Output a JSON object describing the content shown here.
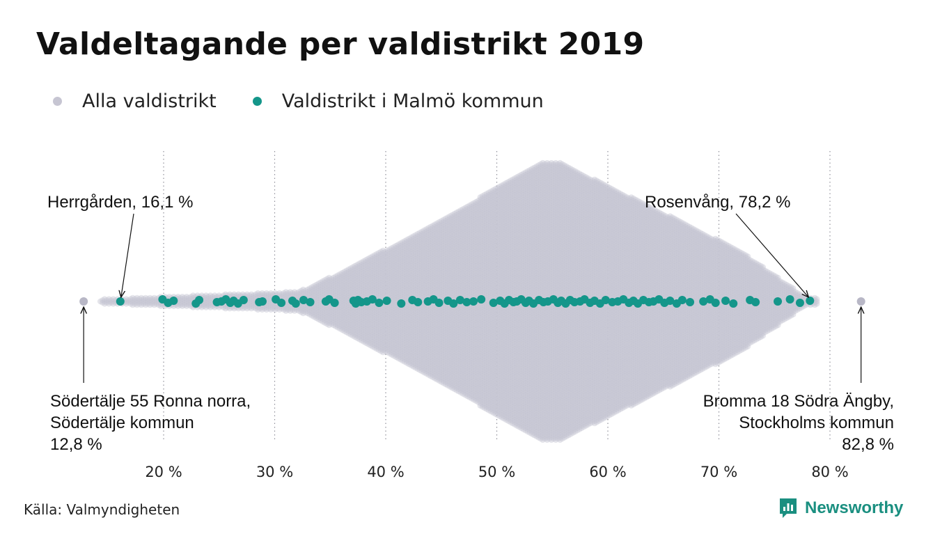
{
  "title": "Valdeltagande per valdistrikt 2019",
  "legend": [
    {
      "label": "Alla valdistrikt",
      "color": "#c6c5d2"
    },
    {
      "label": "Valdistrikt i Malmö kommun",
      "color": "#14968a"
    }
  ],
  "source": "Källa: Valmyndigheten",
  "brand": {
    "name": "Newsworthy",
    "color": "#1a8f80",
    "icon": "newsworthy-logo-icon"
  },
  "chart_data": {
    "type": "scatter",
    "subtype": "beeswarm",
    "xlim": [
      10,
      85
    ],
    "x_ticks": [
      20,
      30,
      40,
      50,
      60,
      70,
      80
    ],
    "x_tick_labels": [
      "20 %",
      "30 %",
      "40 %",
      "50 %",
      "60 %",
      "70 %",
      "80 %"
    ],
    "grid": "vertical dotted",
    "legend_position": "top-left",
    "distribution_all": {
      "name": "Alla valdistrikt",
      "color": "#c6c5d2",
      "min": 12.8,
      "max": 82.8,
      "peak": 54
    },
    "series": [
      {
        "name": "Valdistrikt i Malmö kommun",
        "color": "#14968a",
        "values": [
          16.1,
          19.9,
          20.4,
          20.9,
          22.9,
          23.2,
          24.8,
          25.2,
          25.6,
          26.0,
          26.3,
          26.7,
          27.2,
          28.6,
          28.9,
          30.1,
          30.6,
          31.6,
          31.9,
          32.6,
          33.2,
          34.6,
          34.9,
          35.4,
          37.1,
          37.3,
          37.5,
          37.8,
          38.3,
          38.8,
          39.4,
          40.1,
          41.4,
          42.4,
          42.9,
          43.8,
          44.3,
          44.8,
          45.6,
          46.1,
          46.7,
          47.3,
          47.9,
          48.6,
          49.7,
          50.3,
          50.7,
          51.1,
          51.5,
          51.8,
          52.2,
          52.6,
          52.9,
          53.3,
          53.8,
          54.2,
          54.6,
          55.1,
          55.5,
          55.8,
          56.2,
          56.6,
          57.0,
          57.5,
          57.9,
          58.4,
          58.8,
          59.3,
          59.8,
          60.4,
          60.9,
          61.4,
          61.9,
          62.3,
          62.7,
          63.2,
          63.7,
          64.1,
          64.6,
          65.1,
          65.6,
          66.2,
          66.7,
          67.4,
          68.6,
          69.2,
          69.7,
          70.6,
          71.3,
          72.8,
          73.3,
          75.3,
          76.4,
          77.3,
          78.2
        ]
      }
    ],
    "extremes": [
      {
        "value": 12.8,
        "series": "Alla valdistrikt"
      },
      {
        "value": 82.8,
        "series": "Alla valdistrikt"
      }
    ],
    "annotations": [
      {
        "id": "herrgarden",
        "text": "Herrgården, 16,1 %",
        "x": 16.1
      },
      {
        "id": "rosenvang",
        "text": "Rosenvång, 78,2 %",
        "x": 78.2
      },
      {
        "id": "sodertalje",
        "lines": [
          "Södertälje 55 Ronna norra,",
          "Södertälje kommun",
          "12,8 %"
        ],
        "x": 12.8
      },
      {
        "id": "bromma",
        "lines": [
          "Bromma 18 Södra Ängby,",
          "Stockholms kommun",
          "82,8 %"
        ],
        "x": 82.8
      }
    ]
  }
}
